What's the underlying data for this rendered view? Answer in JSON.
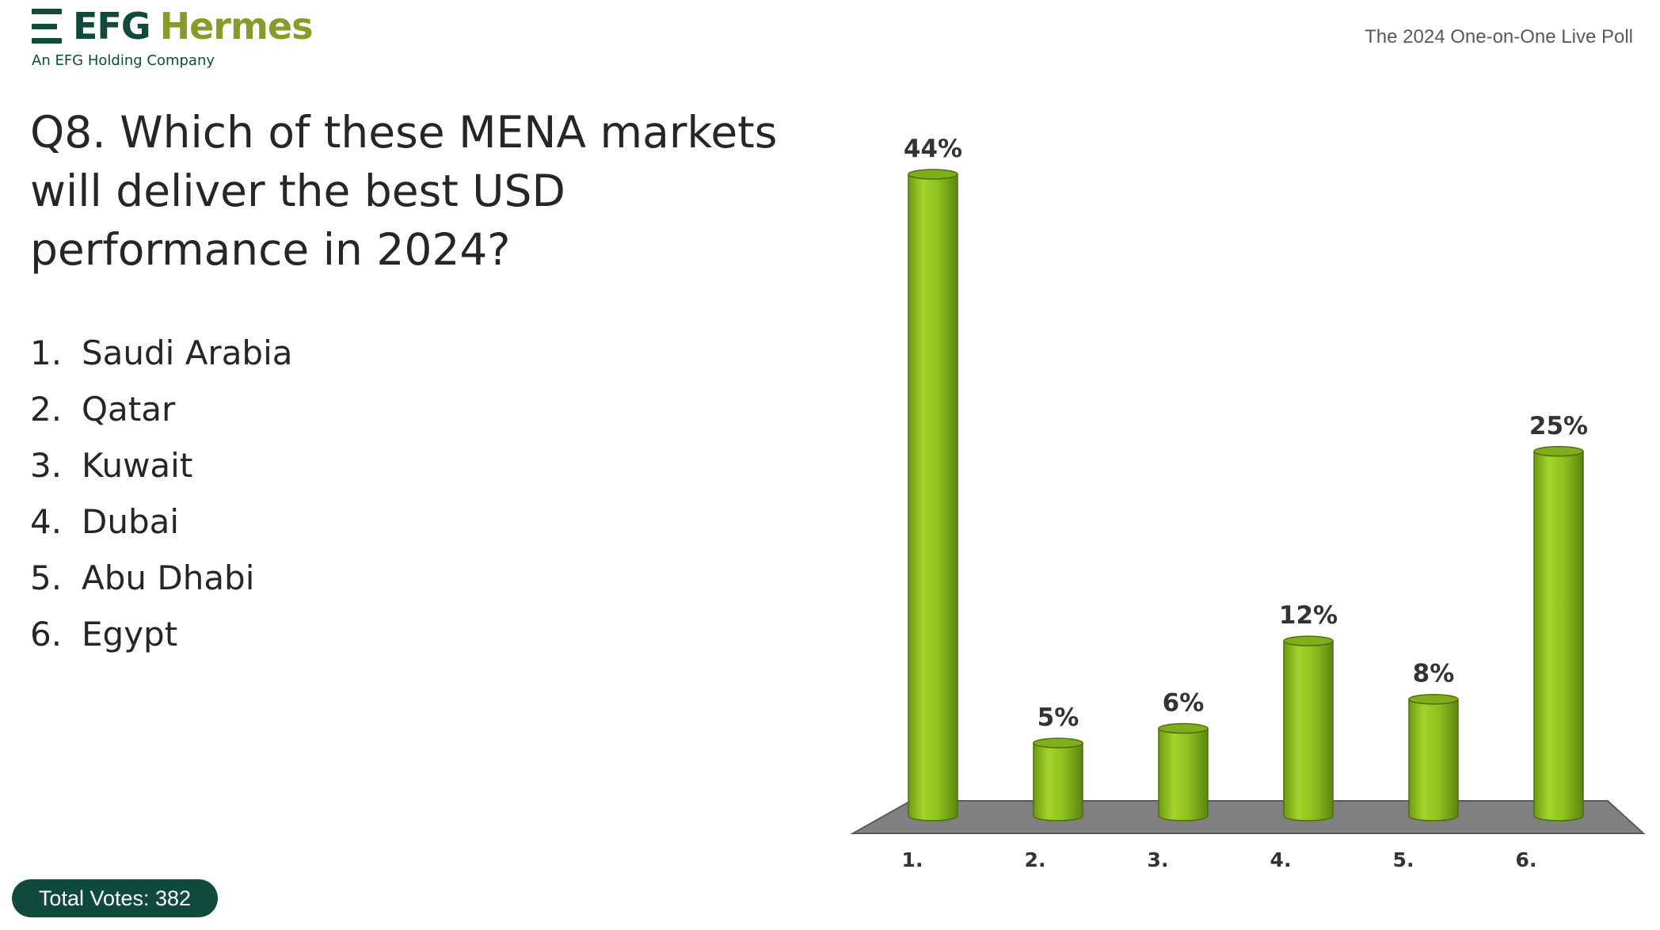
{
  "header": {
    "brand_part1": "EFG",
    "brand_part2": "Hermes",
    "subtitle": "An EFG Holding Company",
    "poll_title": "The 2024 One-on-One Live Poll"
  },
  "question": "Q8. Which of these MENA markets will deliver the best USD performance in 2024?",
  "options": [
    {
      "num": "1.",
      "label": "Saudi Arabia"
    },
    {
      "num": "2.",
      "label": "Qatar"
    },
    {
      "num": "3.",
      "label": "Kuwait"
    },
    {
      "num": "4.",
      "label": "Dubai"
    },
    {
      "num": "5.",
      "label": "Abu Dhabi"
    },
    {
      "num": "6.",
      "label": "Egypt"
    }
  ],
  "footer": {
    "total_votes": "Total Votes: 382"
  },
  "colors": {
    "brand_green": "#0f4a3a",
    "brand_olive": "#8a9a2a",
    "bar": "#8cc21f",
    "floor": "#808080"
  },
  "chart_data": {
    "type": "bar",
    "categories": [
      "1.",
      "2.",
      "3.",
      "4.",
      "5.",
      "6."
    ],
    "values": [
      44,
      5,
      6,
      12,
      8,
      25
    ],
    "value_labels": [
      "44%",
      "5%",
      "6%",
      "12%",
      "8%",
      "25%"
    ],
    "unit": "%",
    "style": "3d-cylinder",
    "ylim": [
      0,
      44
    ],
    "grid": false,
    "legend": "none"
  }
}
